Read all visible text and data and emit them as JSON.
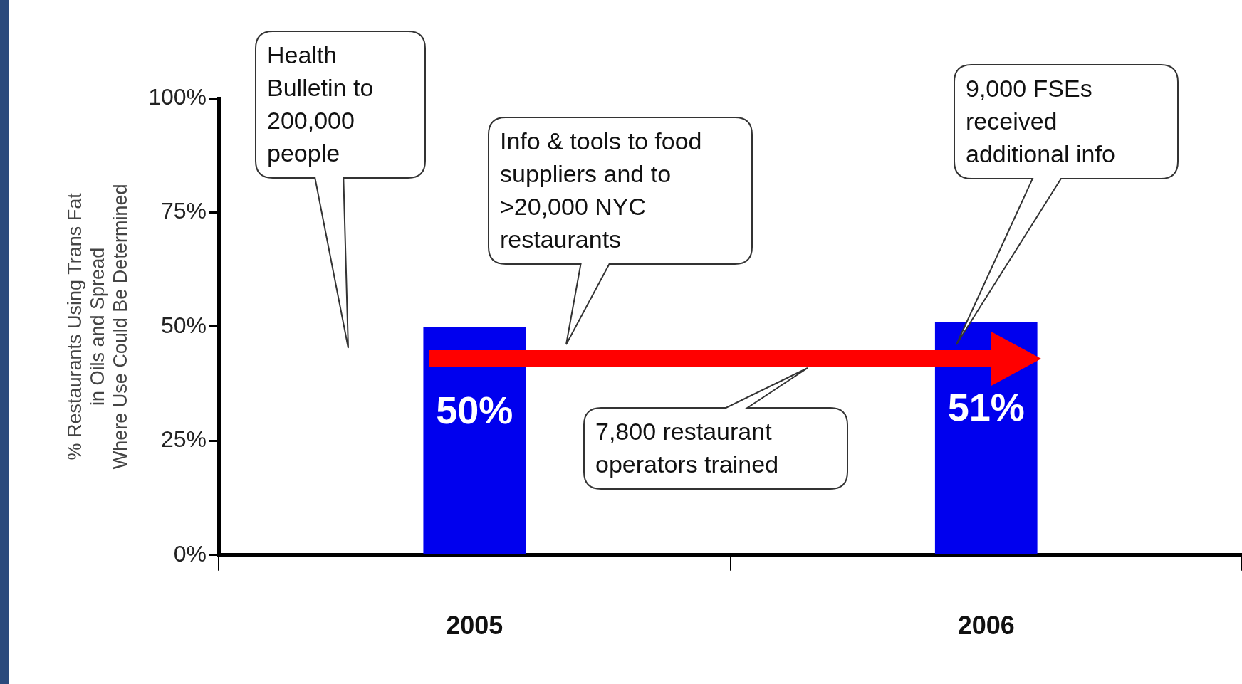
{
  "chart_data": {
    "type": "bar",
    "ylabel": "% Restaurants Using Trans Fat\nin Oils and Spread\nWhere Use Could Be Determined",
    "categories": [
      "2005",
      "2006"
    ],
    "values": [
      50,
      51
    ],
    "color": "#0000ee",
    "value_labels": [
      "50%",
      "51%"
    ],
    "ylim": [
      0,
      100
    ],
    "yticks": [
      {
        "value": 0,
        "label": "0%"
      },
      {
        "value": 25,
        "label": "25%"
      },
      {
        "value": 50,
        "label": "50%"
      },
      {
        "value": 75,
        "label": "75%"
      },
      {
        "value": 100,
        "label": "100%"
      }
    ],
    "grid": false,
    "legend": false,
    "annotations": [
      "Health Bulletin to 200,000 people",
      "Info & tools to food suppliers and to >20,000 NYC restaurants",
      "9,000 FSEs received additional info",
      "7,800 restaurant operators trained"
    ]
  }
}
